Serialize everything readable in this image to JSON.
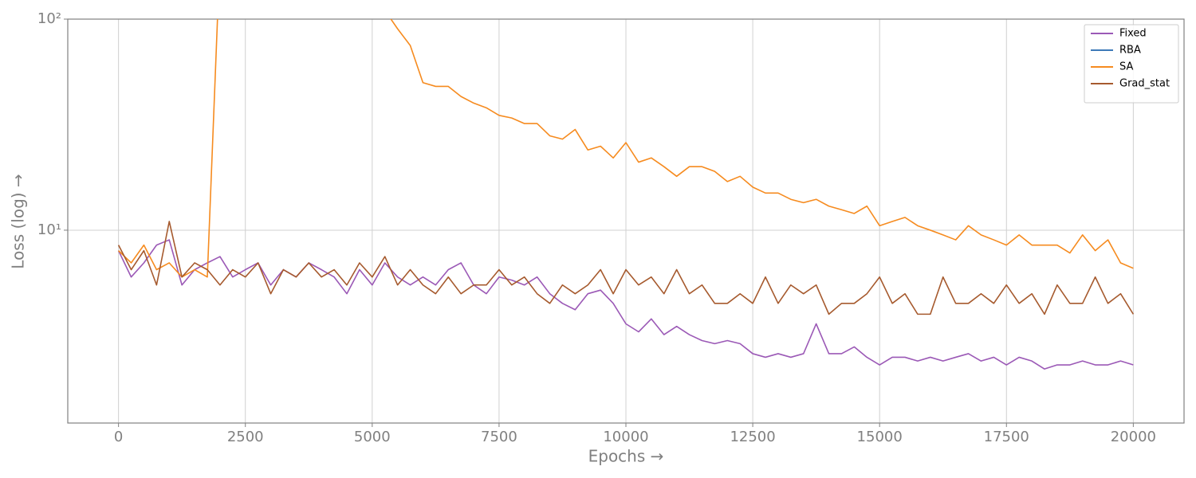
{
  "chart_data": {
    "type": "line",
    "xlabel": "Epochs →",
    "ylabel": "Loss (log) →",
    "x": [
      0,
      250,
      500,
      750,
      1000,
      1250,
      1500,
      1750,
      2000,
      2250,
      2500,
      2750,
      3000,
      3250,
      3500,
      3750,
      4000,
      4250,
      4500,
      4750,
      5000,
      5250,
      5500,
      5750,
      6000,
      6250,
      6500,
      6750,
      7000,
      7250,
      7500,
      7750,
      8000,
      8250,
      8500,
      8750,
      9000,
      9250,
      9500,
      9750,
      10000,
      10250,
      10500,
      10750,
      11000,
      11250,
      11500,
      11750,
      12000,
      12250,
      12500,
      12750,
      13000,
      13250,
      13500,
      13750,
      14000,
      14250,
      14500,
      14750,
      15000,
      15250,
      15500,
      15750,
      16000,
      16250,
      16500,
      16750,
      17000,
      17250,
      17500,
      17750,
      18000,
      18250,
      18500,
      18750,
      19000,
      19250,
      19500,
      19750,
      20000
    ],
    "series": [
      {
        "name": "Fixed",
        "color": "#9b59b6",
        "values": [
          8,
          6,
          7,
          8.5,
          9,
          5.5,
          6.5,
          7,
          7.5,
          6,
          6.5,
          7,
          5.5,
          6.5,
          6,
          7,
          6.5,
          6,
          5,
          6.5,
          5.5,
          7,
          6,
          5.5,
          6,
          5.5,
          6.5,
          7,
          5.5,
          5,
          6,
          5.8,
          5.5,
          6,
          5,
          4.5,
          4.2,
          5,
          5.2,
          4.5,
          3.6,
          3.3,
          3.8,
          3.2,
          3.5,
          3.2,
          3,
          2.9,
          3,
          2.9,
          2.6,
          2.5,
          2.6,
          2.5,
          2.6,
          3.6,
          2.6,
          2.6,
          2.8,
          2.5,
          2.3,
          2.5,
          2.5,
          2.4,
          2.5,
          2.4,
          2.5,
          2.6,
          2.4,
          2.5,
          2.3,
          2.5,
          2.4,
          2.2,
          2.3,
          2.3,
          2.4,
          2.3,
          2.3,
          2.4,
          2.3
        ]
      },
      {
        "name": "RBA",
        "color": "#3d7ab8",
        "values": [
          null,
          null,
          null,
          null,
          null,
          null,
          null,
          null,
          null,
          null,
          null,
          null,
          null,
          null,
          null,
          null,
          null,
          null,
          null,
          null,
          null,
          null,
          null,
          null,
          null,
          null,
          null,
          null,
          null,
          null,
          null,
          null,
          null,
          null,
          null,
          null,
          null,
          null,
          null,
          null,
          null,
          null,
          null,
          null,
          null,
          null,
          null,
          null,
          null,
          null,
          null,
          null,
          null,
          null,
          null,
          null,
          null,
          null,
          null,
          null,
          null,
          null,
          null,
          null,
          null,
          null,
          null,
          null,
          null,
          null,
          null,
          null,
          null,
          null,
          null,
          null,
          null,
          null,
          null,
          null,
          null
        ]
      },
      {
        "name": "SA",
        "color": "#f68b1f",
        "values": [
          8,
          7,
          8.5,
          6.5,
          7,
          6,
          6.5,
          6,
          200,
          null,
          null,
          null,
          null,
          null,
          null,
          null,
          null,
          null,
          null,
          null,
          null,
          110,
          90,
          75,
          50,
          48,
          48,
          43,
          40,
          38,
          35,
          34,
          32,
          32,
          28,
          27,
          30,
          24,
          25,
          22,
          26,
          21,
          22,
          20,
          18,
          20,
          20,
          19,
          17,
          18,
          16,
          15,
          15,
          14,
          13.5,
          14,
          13,
          12.5,
          12,
          13,
          10.5,
          11,
          11.5,
          10.5,
          10,
          9.5,
          9,
          10.5,
          9.5,
          9,
          8.5,
          9.5,
          8.5,
          8.5,
          8.5,
          7.8,
          9.5,
          8,
          9,
          7,
          6.6
        ]
      },
      {
        "name": "Grad_stat",
        "color": "#a65a2e",
        "values": [
          8.5,
          6.5,
          8,
          5.5,
          11,
          6,
          7,
          6.5,
          5.5,
          6.5,
          6,
          7,
          5,
          6.5,
          6,
          7,
          6,
          6.5,
          5.5,
          7,
          6,
          7.5,
          5.5,
          6.5,
          5.5,
          5,
          6,
          5,
          5.5,
          5.5,
          6.5,
          5.5,
          6,
          5,
          4.5,
          5.5,
          5,
          5.5,
          6.5,
          5,
          6.5,
          5.5,
          6,
          5,
          6.5,
          5,
          5.5,
          4.5,
          4.5,
          5,
          4.5,
          6,
          4.5,
          5.5,
          5,
          5.5,
          4,
          4.5,
          4.5,
          5,
          6,
          4.5,
          5,
          4,
          4,
          6,
          4.5,
          4.5,
          5,
          4.5,
          5.5,
          4.5,
          5,
          4,
          5.5,
          4.5,
          4.5,
          6,
          4.5,
          5,
          4
        ]
      }
    ],
    "xlim": [
      -1000,
      21000
    ],
    "xticks": [
      0,
      2500,
      5000,
      7500,
      10000,
      12500,
      15000,
      17500,
      20000
    ],
    "ylim": [
      1.22,
      100
    ],
    "yticks": [
      {
        "value": 10,
        "label": "10¹"
      },
      {
        "value": 100,
        "label": "10²"
      }
    ],
    "ylog": true,
    "grid": true,
    "legend": "upper right"
  }
}
